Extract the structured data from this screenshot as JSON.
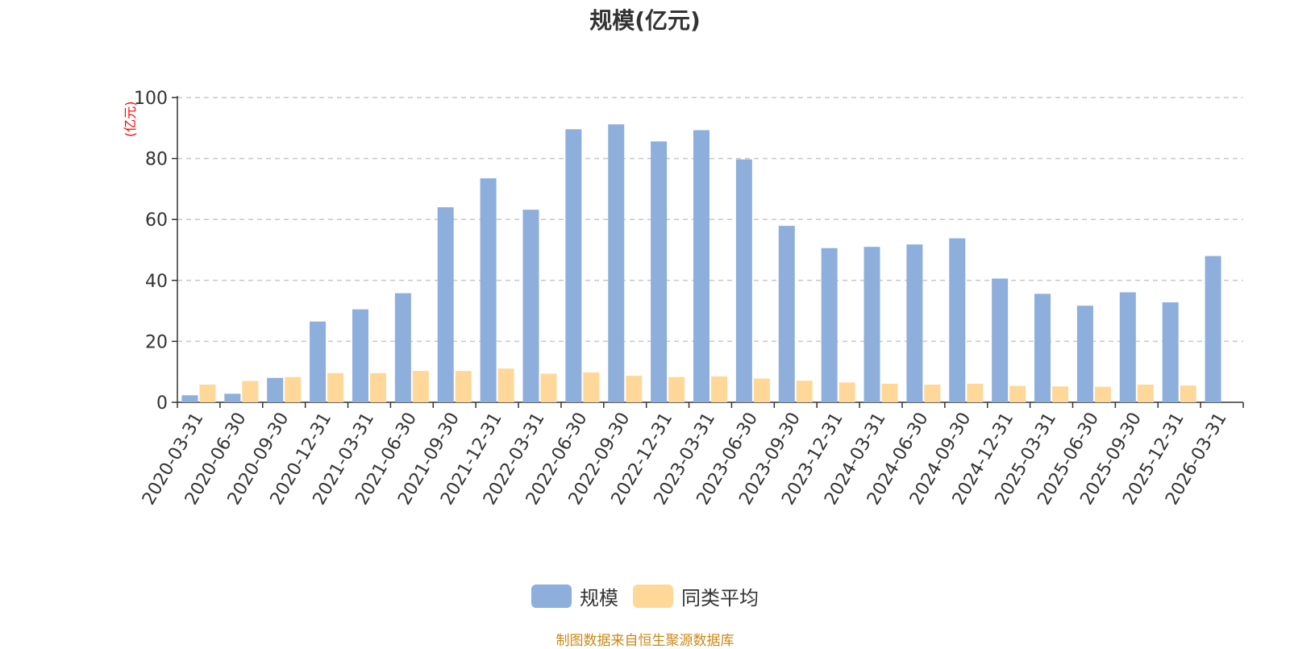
{
  "chart_data": {
    "type": "bar",
    "title": "规模(亿元)",
    "unit_label": "(亿元)",
    "ylim": [
      0,
      100
    ],
    "yticks": [
      0,
      20,
      40,
      60,
      80,
      100
    ],
    "grid": true,
    "legend_position": "bottom",
    "categories": [
      "2020-03-31",
      "2020-06-30",
      "2020-09-30",
      "2020-12-31",
      "2021-03-31",
      "2021-06-30",
      "2021-09-30",
      "2021-12-31",
      "2022-03-31",
      "2022-06-30",
      "2022-09-30",
      "2022-12-31",
      "2023-03-31",
      "2023-06-30",
      "2023-09-30",
      "2023-12-31",
      "2024-03-31",
      "2024-06-30",
      "2024-09-30",
      "2024-12-31",
      "2025-03-31",
      "2025-06-30",
      "2025-09-30",
      "2025-12-31",
      "2026-03-31"
    ],
    "series": [
      {
        "name": "规模",
        "color": "#8eaedb",
        "values": [
          2.3,
          2.8,
          8.0,
          26.5,
          30.5,
          35.8,
          64.0,
          73.5,
          63.2,
          89.6,
          91.2,
          85.6,
          89.3,
          79.7,
          57.9,
          50.6,
          51.0,
          51.8,
          53.8,
          40.6,
          35.6,
          31.7,
          36.1,
          32.8,
          48.0
        ]
      },
      {
        "name": "同类平均",
        "color": "#ffd899",
        "values": [
          5.8,
          7.0,
          8.3,
          9.6,
          9.6,
          10.3,
          10.3,
          11.1,
          9.4,
          9.8,
          8.7,
          8.3,
          8.5,
          7.8,
          7.1,
          6.5,
          6.1,
          5.8,
          6.1,
          5.4,
          5.2,
          5.1,
          5.8,
          5.5,
          null
        ]
      }
    ]
  },
  "source_text": "制图数据来自恒生聚源数据库",
  "colors": {
    "axis": "#333333",
    "grid": "#c8c8c8",
    "source": "#c98a1a",
    "unit": "#ff0000"
  }
}
